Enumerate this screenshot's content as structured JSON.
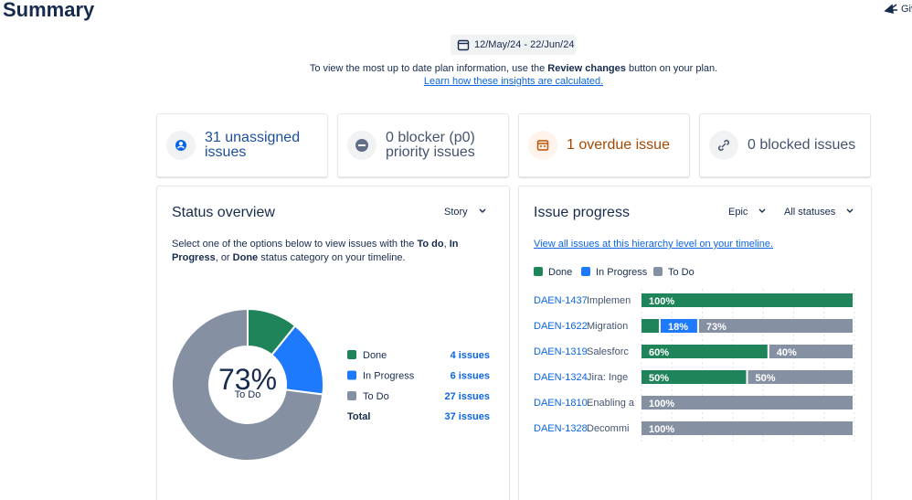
{
  "header": {
    "title": "Summary",
    "feedback": "Giv"
  },
  "date_range": "12/May/24 - 22/Jun/24",
  "info": {
    "parts": [
      {
        "text": "To view the most up to date plan information, use the ",
        "bold": false
      },
      {
        "text": "Review changes",
        "bold": true
      },
      {
        "text": " button on your plan.",
        "bold": false
      }
    ],
    "link": "Learn how these insights are calculated."
  },
  "cards": [
    {
      "label": "31 unassigned issues",
      "color": "#1c4f9c"
    },
    {
      "label": "0 blocker (p0) priority issues",
      "color": "#44546f"
    },
    {
      "label": "1 overdue issue",
      "color": "#a54800"
    },
    {
      "label": "0 blocked issues",
      "color": "#44546f"
    }
  ],
  "status_overview": {
    "title": "Status overview",
    "dropdown": "Story",
    "description": [
      {
        "text": "Select one of the options below to view issues with the ",
        "bold": false
      },
      {
        "text": "To do",
        "bold": true
      },
      {
        "text": ", ",
        "bold": false
      },
      {
        "text": "In Progress",
        "bold": true
      },
      {
        "text": ", or ",
        "bold": false
      },
      {
        "text": "Done",
        "bold": true
      },
      {
        "text": " status category on your timeline.",
        "bold": false
      }
    ],
    "donut": {
      "type": "pie",
      "center_label": "73%",
      "center_sublabel": "To Do",
      "categories": [
        "Done",
        "In Progress",
        "To Do"
      ],
      "colors": [
        "#1f845a",
        "#1d7afc",
        "#8590a2"
      ],
      "values": [
        4,
        6,
        27
      ],
      "value_labels": [
        "4 issues",
        "6 issues",
        "27 issues"
      ],
      "total_label": "Total",
      "total_value_label": "37 issues"
    }
  },
  "issue_progress": {
    "title": "Issue progress",
    "dropdowns": [
      "Epic",
      "All statuses"
    ],
    "link": "View all issues at this hierarchy level on your timeline.",
    "chart": {
      "type": "bar",
      "stacked": true,
      "orientation": "horizontal",
      "categories": [
        {
          "key": "DAEN-1437",
          "summary": "Implemen"
        },
        {
          "key": "DAEN-1622",
          "summary": "Migration"
        },
        {
          "key": "DAEN-1319",
          "summary": "Salesforc"
        },
        {
          "key": "DAEN-1324",
          "summary": "Jira: Inge"
        },
        {
          "key": "DAEN-1810",
          "summary": "Enabling a"
        },
        {
          "key": "DAEN-1328",
          "summary": "Decommi"
        }
      ],
      "series": [
        {
          "name": "Done",
          "color": "#1f845a",
          "values": [
            100,
            9,
            60,
            50,
            0,
            0
          ],
          "value_labels": [
            "100%",
            null,
            "60%",
            "50%",
            null,
            null
          ]
        },
        {
          "name": "In Progress",
          "color": "#1d7afc",
          "values": [
            0,
            18,
            0,
            0,
            0,
            0
          ],
          "value_labels": [
            null,
            "18%",
            null,
            null,
            null,
            null
          ]
        },
        {
          "name": "To Do",
          "color": "#8590a2",
          "values": [
            0,
            73,
            40,
            50,
            100,
            100
          ],
          "value_labels": [
            null,
            "73%",
            "40%",
            "50%",
            "100%",
            "100%"
          ]
        }
      ]
    }
  }
}
